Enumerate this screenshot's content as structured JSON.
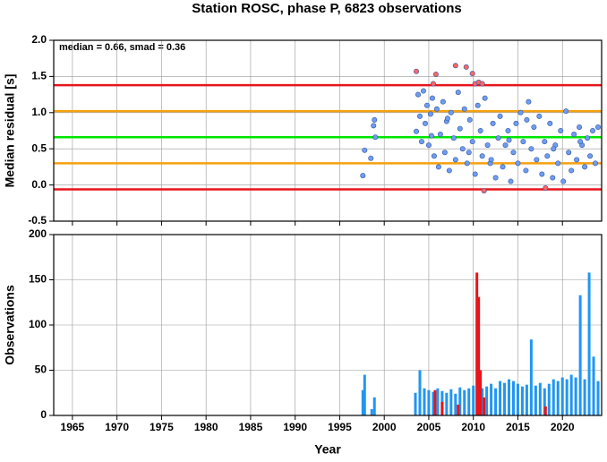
{
  "chart_data": [
    {
      "type": "scatter",
      "title": "Station ROSC, phase P, 6823 observations",
      "ylabel": "Median residual [s]",
      "annotation": "median = 0.66, smad = 0.36",
      "xlim": [
        1962.9,
        2024.4
      ],
      "ylim": [
        -0.5,
        2.0
      ],
      "yticks": [
        {
          "value": -0.5,
          "label": "-0.5"
        },
        {
          "value": 0,
          "label": "0.0"
        },
        {
          "value": 0.5,
          "label": "0.5"
        },
        {
          "value": 1,
          "label": "1.0"
        },
        {
          "value": 1.5,
          "label": "1.5"
        },
        {
          "value": 2,
          "label": "2.0"
        }
      ],
      "grid": true,
      "reference_lines": [
        {
          "value": 1.38,
          "color": "#e8141b"
        },
        {
          "value": 1.02,
          "color": "#f5a10f"
        },
        {
          "value": 0.66,
          "color": "#00e600"
        },
        {
          "value": 0.3,
          "color": "#f5a10f"
        },
        {
          "value": -0.06,
          "color": "#e8141b"
        }
      ],
      "series": [
        {
          "color": "#6f9cf0",
          "x": [
            1997.6,
            1997.8,
            1998.5,
            1998.8,
            1998.9,
            1999.0,
            2003.6,
            2003.8,
            2004.0,
            2004.2,
            2004.4,
            2004.6,
            2004.8,
            2005.0,
            2005.2,
            2005.4,
            2005.6,
            2005.9,
            2006.1,
            2006.3,
            2006.6,
            2006.8,
            2007.0,
            2007.3,
            2007.5,
            2007.8,
            2008.0,
            2008.3,
            2008.5,
            2008.8,
            2009.0,
            2009.3,
            2009.6,
            2009.9,
            2010.2,
            2010.5,
            2010.8,
            2011.0,
            2011.3,
            2011.6,
            2011.9,
            2012.2,
            2012.5,
            2012.8,
            2013.0,
            2013.3,
            2013.6,
            2013.9,
            2014.2,
            2014.5,
            2014.8,
            2015.0,
            2015.3,
            2015.6,
            2015.9,
            2016.2,
            2016.5,
            2016.8,
            2017.1,
            2017.4,
            2017.7,
            2018.0,
            2018.3,
            2018.6,
            2018.9,
            2019.2,
            2019.5,
            2019.8,
            2020.1,
            2020.4,
            2020.7,
            2021.0,
            2021.3,
            2021.6,
            2021.9,
            2022.2,
            2022.5,
            2022.8,
            2023.1,
            2023.4,
            2023.7,
            2024.0,
            2005.3,
            2007.1,
            2009.5,
            2012.0,
            2014.0,
            2016.0,
            2019.0,
            2022.0
          ],
          "values": [
            0.13,
            0.48,
            0.37,
            0.82,
            0.9,
            0.66,
            0.74,
            1.25,
            0.95,
            0.6,
            1.3,
            0.85,
            1.1,
            0.55,
            0.98,
            1.2,
            0.4,
            1.05,
            0.25,
            0.7,
            1.15,
            0.45,
            0.88,
            0.2,
            1.0,
            0.65,
            0.35,
            1.28,
            0.78,
            0.5,
            1.05,
            0.3,
            0.9,
            0.6,
            0.15,
            1.1,
            0.75,
            0.4,
            1.2,
            0.55,
            0.3,
            0.85,
            0.1,
            0.65,
            0.95,
            0.25,
            0.55,
            0.75,
            0.05,
            0.45,
            0.85,
            0.3,
            1.0,
            0.6,
            0.2,
            1.15,
            0.5,
            0.8,
            0.35,
            0.95,
            0.15,
            0.6,
            0.4,
            0.85,
            0.1,
            0.55,
            0.3,
            0.75,
            0.05,
            1.02,
            0.45,
            0.2,
            0.7,
            0.35,
            0.8,
            0.55,
            0.25,
            0.65,
            0.4,
            0.75,
            0.3,
            0.8,
            0.68,
            0.92,
            0.45,
            0.35,
            0.62,
            0.9,
            0.5,
            0.6
          ]
        },
        {
          "color": "#ff6666",
          "x": [
            2003.6,
            2005.5,
            2005.8,
            2008.0,
            2009.2,
            2009.9,
            2010.2,
            2010.6,
            2011.0,
            2011.2,
            2018.1
          ],
          "values": [
            1.57,
            1.4,
            1.53,
            1.65,
            1.63,
            1.54,
            1.4,
            1.42,
            1.4,
            -0.08,
            -0.04
          ]
        }
      ]
    },
    {
      "type": "bar",
      "ylabel": "Observations",
      "xlabel": "Year",
      "xlim": [
        1962.9,
        2024.4
      ],
      "ylim": [
        0,
        200
      ],
      "xticks": [
        1965,
        1970,
        1975,
        1980,
        1985,
        1990,
        1995,
        2000,
        2005,
        2010,
        2015,
        2020
      ],
      "yticks": [
        0,
        50,
        100,
        150,
        200
      ],
      "grid": true,
      "series": [
        {
          "color": "#2196f3",
          "x": [
            1997.6,
            1997.8,
            1998.6,
            1998.9,
            2003.5,
            2004,
            2004.5,
            2005,
            2005.5,
            2006,
            2006.5,
            2007,
            2007.5,
            2008,
            2008.5,
            2009,
            2009.5,
            2010,
            2010.5,
            2011,
            2011.5,
            2012,
            2012.5,
            2013,
            2013.5,
            2014,
            2014.5,
            2015,
            2015.5,
            2016,
            2016.5,
            2017,
            2017.5,
            2018,
            2018.5,
            2019,
            2019.5,
            2020,
            2020.5,
            2021,
            2021.5,
            2022,
            2022.5,
            2023,
            2023.5,
            2024
          ],
          "values": [
            28,
            45,
            7,
            20,
            25,
            50,
            30,
            28,
            26,
            30,
            27,
            25,
            29,
            24,
            31,
            28,
            30,
            33,
            45,
            30,
            32,
            35,
            30,
            38,
            36,
            40,
            38,
            35,
            32,
            34,
            84,
            33,
            36,
            30,
            35,
            40,
            38,
            42,
            40,
            45,
            42,
            133,
            40,
            158,
            65,
            38
          ]
        },
        {
          "color": "#e8141b",
          "x": [
            2005.7,
            2006.5,
            2008.3,
            2010.4,
            2010.6,
            2010.8,
            2011.2,
            2018.1
          ],
          "values": [
            28,
            15,
            12,
            158,
            131,
            50,
            20,
            10
          ]
        }
      ]
    }
  ]
}
